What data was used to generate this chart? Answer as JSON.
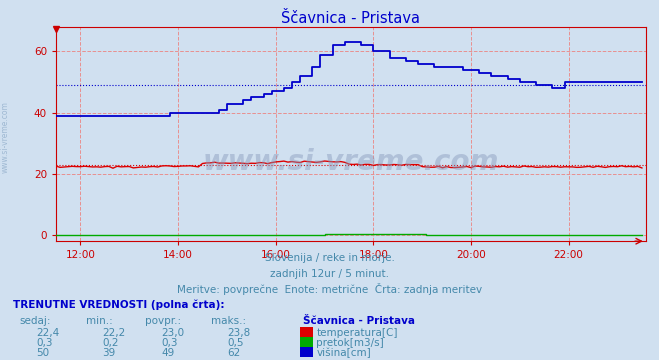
{
  "title": "Ščavnica - Pristava",
  "background_color": "#d0e0f0",
  "plot_bg_color": "#d0e0f0",
  "fig_bg_color": "#d0e0f0",
  "xlabel": "",
  "ylabel": "",
  "xlim_hours": [
    11.5,
    23.58
  ],
  "ylim": [
    -2,
    68
  ],
  "yticks": [
    0,
    20,
    40,
    60
  ],
  "xtick_labels": [
    "12:00",
    "14:00",
    "16:00",
    "18:00",
    "20:00",
    "22:00"
  ],
  "xtick_positions": [
    12,
    14,
    16,
    18,
    20,
    22
  ],
  "watermark": "www.si-vreme.com",
  "subtitle1": "Slovenija / reke in morje.",
  "subtitle2": "zadnjih 12ur / 5 minut.",
  "subtitle3": "Meritve: povprečne  Enote: metrične  Črta: zadnja meritev",
  "legend_title": "Ščavnica - Pristava",
  "legend_items": [
    {
      "label": "temperatura[C]",
      "color": "#dd0000"
    },
    {
      "label": "pretok[m3/s]",
      "color": "#00aa00"
    },
    {
      "label": "višina[cm]",
      "color": "#0000cc"
    }
  ],
  "table_header": [
    "sedaj:",
    "min.:",
    "povpr.:",
    "maks.:"
  ],
  "table_data": [
    [
      "22,4",
      "22,2",
      "23,0",
      "23,8"
    ],
    [
      "0,3",
      "0,2",
      "0,3",
      "0,5"
    ],
    [
      "50",
      "39",
      "49",
      "62"
    ]
  ],
  "table_label": "TRENUTNE VREDNOSTI (polna črta):",
  "temp_color": "#dd0000",
  "flow_color": "#00aa00",
  "height_color": "#0000cc",
  "avg_temp": 23.0,
  "avg_flow": 0.3,
  "avg_height": 49,
  "title_color": "#0000cc",
  "text_color": "#4488aa",
  "axis_color": "#cc0000",
  "grid_color": "#e89090"
}
